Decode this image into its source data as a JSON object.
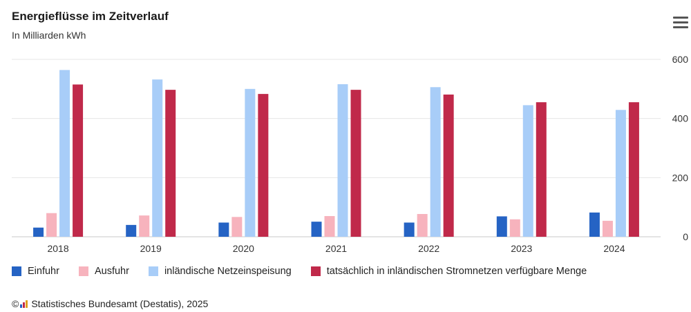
{
  "header": {
    "title": "Energieflüsse im Zeitverlauf",
    "subtitle": "In Milliarden kWh"
  },
  "credits": {
    "copyright_symbol": "©",
    "text": "Statistisches Bundesamt (Destatis), 2025"
  },
  "chart_data": {
    "type": "bar",
    "title": "Energieflüsse im Zeitverlauf",
    "subtitle": "In Milliarden kWh",
    "categories": [
      "2018",
      "2019",
      "2020",
      "2021",
      "2022",
      "2023",
      "2024"
    ],
    "series": [
      {
        "name": "Einfuhr",
        "color": "#2563c4",
        "values": [
          31,
          40,
          48,
          51,
          48,
          69,
          82
        ]
      },
      {
        "name": "Ausfuhr",
        "color": "#f7b3bd",
        "values": [
          80,
          72,
          67,
          70,
          77,
          59,
          54
        ]
      },
      {
        "name": "inländische Netzeinspeisung",
        "color": "#a8cdf8",
        "values": [
          564,
          532,
          500,
          516,
          506,
          445,
          429
        ]
      },
      {
        "name": "tatsächlich in inländischen Stromnetzen verfügbare Menge",
        "color": "#c0294a",
        "values": [
          515,
          497,
          483,
          497,
          481,
          455,
          455
        ]
      }
    ],
    "y_axis": {
      "position": "right",
      "min": 0,
      "max": 600,
      "ticks": [
        0,
        200,
        400,
        600
      ]
    },
    "grid": true,
    "legend_position": "bottom-left"
  }
}
